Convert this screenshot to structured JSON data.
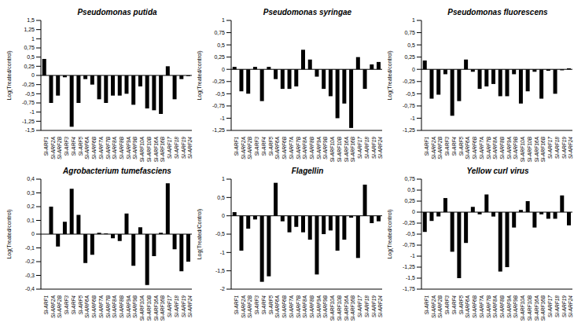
{
  "chart_data": [
    {
      "type": "bar",
      "title": "Pseudomonas putida",
      "y_label": "Log(Treated/control)",
      "color": "#000000",
      "categories": [
        "Sl-ARF1",
        "Sl-ARF2A",
        "Sl-ARF2B",
        "Sl-ARF3",
        "Sl-ARF4",
        "Sl-ARF5",
        "Sl-ARF6A",
        "Sl-ARF6B",
        "Sl-ARF7A",
        "Sl-ARF7B",
        "Sl-ARF8A",
        "Sl-ARF8B",
        "Sl-ARF9A",
        "Sl-ARF9B",
        "Sl-ARF10A",
        "Sl-ARF10B",
        "Sl-ARF16A",
        "Sl-ARF16B",
        "Sl-ARF17",
        "Sl-ARF18",
        "Sl-ARF19",
        "Sl-ARF24"
      ],
      "values": [
        0.45,
        -0.75,
        -0.55,
        -0.05,
        -1.4,
        -0.75,
        -0.1,
        -0.25,
        -0.65,
        -0.75,
        -0.55,
        -0.55,
        -0.5,
        -0.8,
        -0.3,
        -0.9,
        -0.95,
        -1.05,
        0.25,
        -0.65,
        -0.1,
        -0.02
      ],
      "ylim": [
        -1.5,
        1.5
      ],
      "yticks": [
        {
          "value": -1.5,
          "label": "-1,5"
        },
        {
          "value": -1.25,
          "label": "-1,25"
        },
        -1,
        {
          "value": -0.75,
          "label": "-0,75"
        },
        {
          "value": -0.5,
          "label": "-0,5"
        },
        {
          "value": -0.25,
          "label": "-0,25"
        },
        0,
        {
          "value": 0.25,
          "label": "0,25"
        },
        {
          "value": 0.5,
          "label": "0,5"
        },
        {
          "value": 0.75,
          "label": "0,75"
        },
        1,
        {
          "value": 1.25,
          "label": "1,25"
        },
        {
          "value": 1.5,
          "label": "1,5"
        }
      ]
    },
    {
      "type": "bar",
      "title": "Pseudomonas syringae",
      "y_label": "Log(Treated/control)",
      "color": "#000000",
      "categories": [
        "Sl-ARF1",
        "Sl-ARF2A",
        "Sl-ARF2B",
        "Sl-ARF3",
        "Sl-ARF4",
        "Sl-ARF5",
        "Sl-ARF6A",
        "Sl-ARF6B",
        "Sl-ARF7A",
        "Sl-ARF7B",
        "Sl-ARF8A",
        "Sl-ARF8B",
        "Sl-ARF9A",
        "Sl-ARF9B",
        "Sl-ARF10A",
        "Sl-ARF10B",
        "Sl-ARF16A",
        "Sl-ARF16B",
        "Sl-ARF17",
        "Sl-ARF18",
        "Sl-ARF19",
        "Sl-ARF24"
      ],
      "values": [
        0.05,
        -0.45,
        -0.5,
        0.05,
        -0.65,
        0.05,
        -0.2,
        -0.4,
        -0.4,
        -0.35,
        0.4,
        0.2,
        -0.15,
        -0.4,
        -0.55,
        -1.0,
        -0.7,
        -1.2,
        0.25,
        -0.4,
        0.1,
        0.15
      ],
      "ylim": [
        -1.25,
        1
      ],
      "yticks": [
        {
          "value": -1.25,
          "label": "-1,25"
        },
        -1,
        {
          "value": -0.75,
          "label": "-0,75"
        },
        {
          "value": -0.5,
          "label": "-0,5"
        },
        {
          "value": -0.25,
          "label": "-0,25"
        },
        0,
        {
          "value": 0.25,
          "label": "0,25"
        },
        {
          "value": 0.5,
          "label": "0,5"
        },
        {
          "value": 0.75,
          "label": "0,75"
        },
        1
      ]
    },
    {
      "type": "bar",
      "title": "Pseudomonas fluorescens",
      "y_label": "Log(Treated/control)",
      "color": "#000000",
      "categories": [
        "Sl-ARF1",
        "Sl-ARF2A",
        "Sl-ARF2B",
        "Sl-ARF3",
        "Sl-ARF4",
        "Sl-ARF5",
        "Sl-ARF6A",
        "Sl-ARF6B",
        "Sl-ARF7A",
        "Sl-ARF7B",
        "Sl-ARF8A",
        "Sl-ARF8B",
        "Sl-ARF9A",
        "Sl-ARF9B",
        "Sl-ARF10A",
        "Sl-ARF10B",
        "Sl-ARF16A",
        "Sl-ARF16B",
        "Sl-ARF17",
        "Sl-ARF18",
        "Sl-ARF19",
        "Sl-ARF24"
      ],
      "values": [
        0.18,
        -0.6,
        -0.52,
        -0.1,
        -0.95,
        -0.65,
        0.2,
        -0.05,
        -0.4,
        -0.35,
        -0.3,
        -0.55,
        -0.55,
        -0.1,
        -0.7,
        -0.45,
        -0.05,
        -0.6,
        -0.03,
        -0.5,
        -0.02,
        0.02
      ],
      "ylim": [
        -1.25,
        1
      ],
      "yticks": [
        {
          "value": -1.25,
          "label": "-1,25"
        },
        -1,
        {
          "value": -0.75,
          "label": "-0,75"
        },
        {
          "value": -0.5,
          "label": "-0,5"
        },
        {
          "value": -0.25,
          "label": "-0,25"
        },
        0,
        {
          "value": 0.25,
          "label": "0,25"
        },
        {
          "value": 0.5,
          "label": "0,5"
        },
        {
          "value": 0.75,
          "label": "0,75"
        },
        1
      ]
    },
    {
      "type": "bar",
      "title": "Agrobacterium tumefasciens",
      "y_label": "Log(Treated/control)",
      "color": "#000000",
      "categories": [
        "Sl-ARF1",
        "Sl-ARF2A",
        "Sl-ARF2B",
        "Sl-ARF3",
        "Sl-ARF4",
        "Sl-ARF5",
        "Sl-ARF6A",
        "Sl-ARF6B",
        "Sl-ARF7A",
        "Sl-ARF7B",
        "Sl-ARF8A",
        "Sl-ARF8B",
        "Sl-ARF9A",
        "Sl-ARF9B",
        "Sl-ARF10A",
        "Sl-ARF10B",
        "Sl-ARF16A",
        "Sl-ARF16B",
        "Sl-ARF17",
        "Sl-ARF18",
        "Sl-ARF19",
        "Sl-ARF24"
      ],
      "values": [
        0,
        0.2,
        -0.09,
        0.09,
        0.33,
        0.14,
        -0.21,
        -0.15,
        0.01,
        0.005,
        -0.03,
        -0.05,
        0.15,
        -0.23,
        0.05,
        -0.37,
        -0.16,
        0.01,
        0.37,
        -0.11,
        -0.27,
        -0.2
      ],
      "ylim": [
        -0.4,
        0.4
      ],
      "yticks": [
        {
          "value": -0.4,
          "label": "-0,4"
        },
        {
          "value": -0.3,
          "label": "-0,3"
        },
        {
          "value": -0.2,
          "label": "-0,2"
        },
        {
          "value": -0.1,
          "label": "-0,1"
        },
        0,
        {
          "value": 0.1,
          "label": "0,1"
        },
        {
          "value": 0.2,
          "label": "0,2"
        },
        {
          "value": 0.3,
          "label": "0,3"
        },
        {
          "value": 0.4,
          "label": "0,4"
        }
      ]
    },
    {
      "type": "bar",
      "title": "Flagellin",
      "y_label": "Log(Treated/Control)",
      "color": "#000000",
      "categories": [
        "Sl-ARF1",
        "Sl-ARF2A",
        "Sl-ARF2B",
        "Sl-ARF3",
        "Sl-ARF4",
        "Sl-ARF5",
        "Sl-ARF6A",
        "Sl-ARF6B",
        "Sl-ARF7A",
        "Sl-ARF7B",
        "Sl-ARF8A",
        "Sl-ARF8B",
        "Sl-ARF9A",
        "Sl-ARF9B",
        "Sl-ARF10A",
        "Sl-ARF10B",
        "Sl-ARF16A",
        "Sl-ARF16B",
        "Sl-ARF17",
        "Sl-ARF18",
        "Sl-ARF19",
        "Sl-ARF24"
      ],
      "values": [
        0.1,
        -0.95,
        -0.35,
        -0.1,
        -1.8,
        -1.65,
        0.9,
        -0.15,
        -0.45,
        -0.3,
        -0.45,
        -0.65,
        -1.6,
        -0.5,
        -0.4,
        -0.95,
        -0.65,
        -0.05,
        -1.15,
        0.85,
        -0.2,
        -0.15
      ],
      "ylim": [
        -2,
        1
      ],
      "yticks": [
        -2,
        {
          "value": -1.5,
          "label": "-1,5"
        },
        -1,
        {
          "value": -0.5,
          "label": "-0,5"
        },
        0,
        {
          "value": 0.5,
          "label": "0,5"
        },
        1
      ]
    },
    {
      "type": "bar",
      "title": "Yellow curl virus",
      "y_label": "Log(Treated/control)",
      "color": "#000000",
      "categories": [
        "Sl-ARF1",
        "Sl-ARF2A",
        "Sl-ARF2B",
        "Sl-ARF3",
        "Sl-ARF4",
        "Sl-ARF5",
        "Sl-ARF6A",
        "Sl-ARF6B",
        "Sl-ARF7A",
        "Sl-ARF7B",
        "Sl-ARF8A",
        "Sl-ARF8B",
        "Sl-ARF9A",
        "Sl-ARF9B",
        "Sl-ARF10A",
        "Sl-ARF10B",
        "Sl-ARF16A",
        "Sl-ARF16B",
        "Sl-ARF17",
        "Sl-ARF18",
        "Sl-ARF19",
        "Sl-ARF24"
      ],
      "values": [
        -0.45,
        -0.2,
        -0.1,
        0.32,
        -0.9,
        -1.5,
        -0.7,
        0.12,
        -0.05,
        0.4,
        -0.1,
        -1.35,
        -1.25,
        -0.35,
        0.05,
        0.25,
        -0.35,
        -0.05,
        -0.15,
        -0.15,
        0.38,
        -0.3
      ],
      "ylim": [
        -1.75,
        0.75
      ],
      "yticks": [
        {
          "value": -1.75,
          "label": "-1,75"
        },
        {
          "value": -1.5,
          "label": "-1,5"
        },
        {
          "value": -1.25,
          "label": "-1,25"
        },
        -1,
        {
          "value": -0.75,
          "label": "-0,75"
        },
        {
          "value": -0.5,
          "label": "-0,5"
        },
        {
          "value": -0.25,
          "label": "-0,25"
        },
        0,
        {
          "value": 0.25,
          "label": "0,25"
        },
        {
          "value": 0.5,
          "label": "0,5"
        },
        {
          "value": 0.75,
          "label": "0,75"
        }
      ]
    }
  ]
}
